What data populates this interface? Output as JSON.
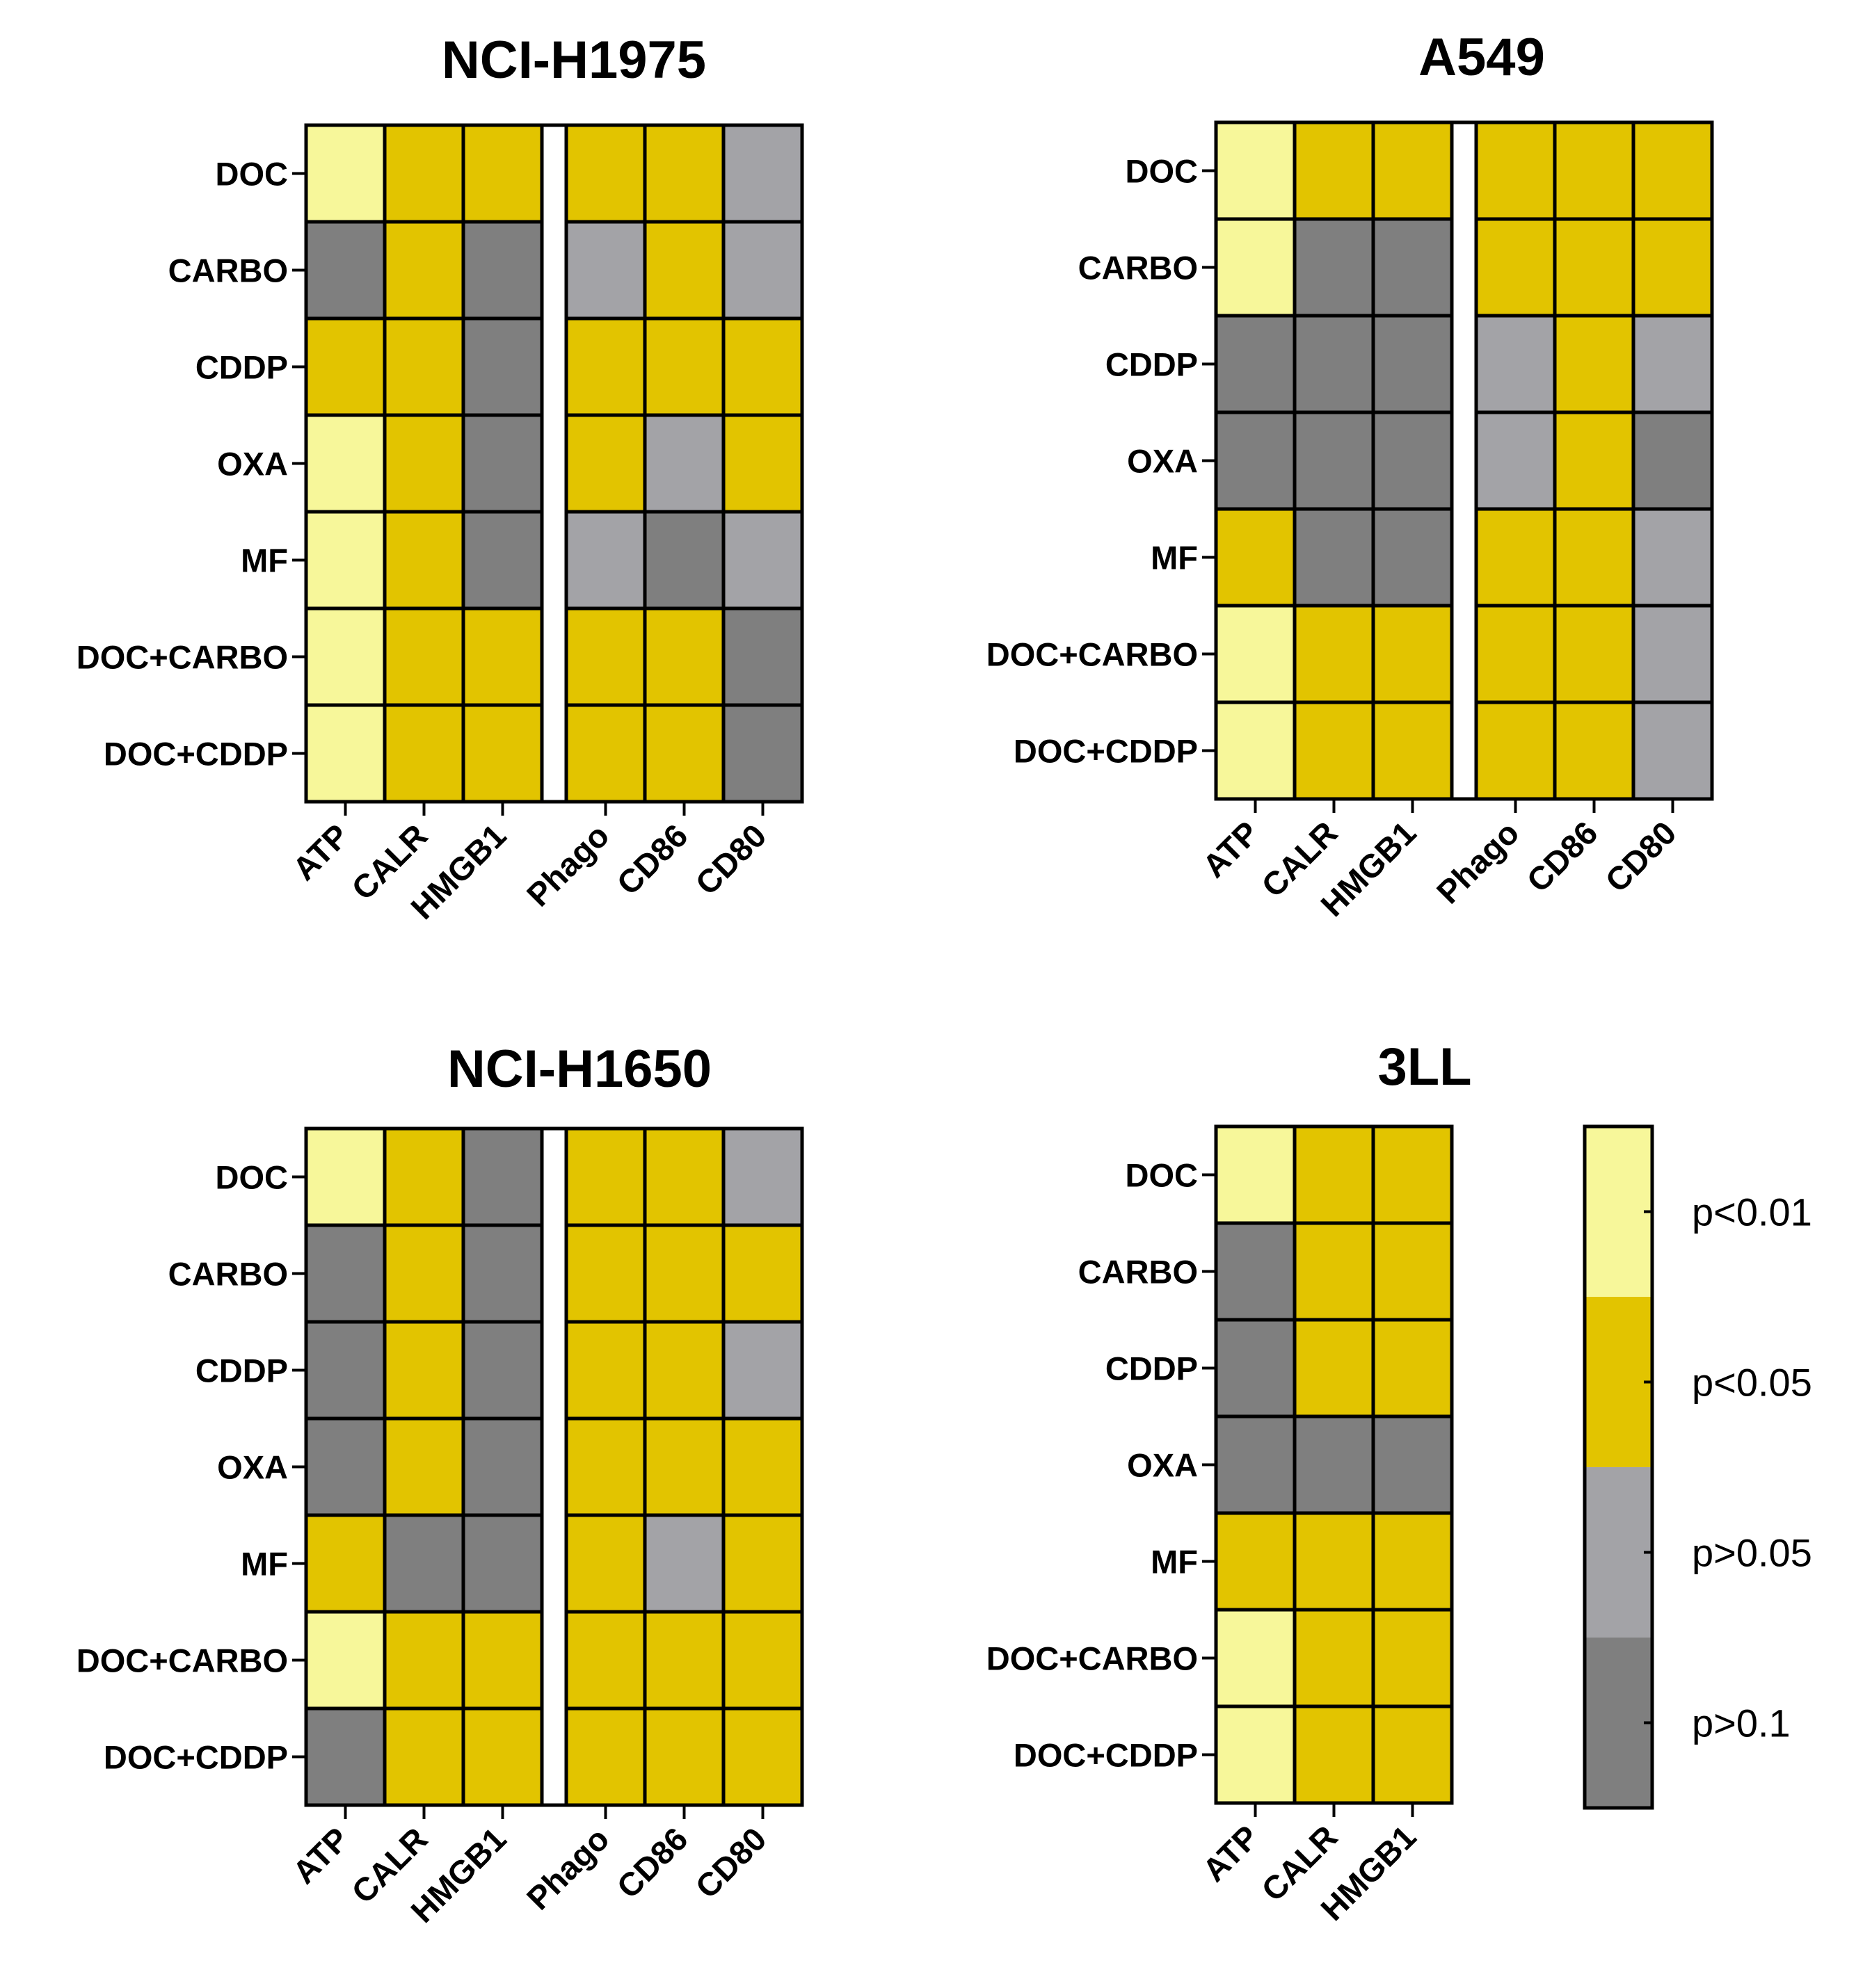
{
  "colors": {
    "p<0.01": "#f7f79a",
    "p<0.05": "#e2c400",
    "p>0.05": "#a3a3a7",
    "p>0.1": "#7f7f7f"
  },
  "chart_data": [
    {
      "type": "heatmap",
      "title": "NCI-H1975",
      "rows": [
        "DOC",
        "CARBO",
        "CDDP",
        "OXA",
        "MF",
        "DOC+CARBO",
        "DOC+CDDP"
      ],
      "columns": [
        "ATP",
        "CALR",
        "HMGB1",
        "Phago",
        "CD86",
        "CD80"
      ],
      "gap_after_column": 2,
      "values": [
        [
          "p<0.01",
          "p<0.05",
          "p<0.05",
          "p<0.05",
          "p<0.05",
          "p>0.05"
        ],
        [
          "p>0.1",
          "p<0.05",
          "p>0.1",
          "p>0.05",
          "p<0.05",
          "p>0.05"
        ],
        [
          "p<0.05",
          "p<0.05",
          "p>0.1",
          "p<0.05",
          "p<0.05",
          "p<0.05"
        ],
        [
          "p<0.01",
          "p<0.05",
          "p>0.1",
          "p<0.05",
          "p>0.05",
          "p<0.05"
        ],
        [
          "p<0.01",
          "p<0.05",
          "p>0.1",
          "p>0.05",
          "p>0.1",
          "p>0.05"
        ],
        [
          "p<0.01",
          "p<0.05",
          "p<0.05",
          "p<0.05",
          "p<0.05",
          "p>0.1"
        ],
        [
          "p<0.01",
          "p<0.05",
          "p<0.05",
          "p<0.05",
          "p<0.05",
          "p>0.1"
        ]
      ]
    },
    {
      "type": "heatmap",
      "title": "A549",
      "rows": [
        "DOC",
        "CARBO",
        "CDDP",
        "OXA",
        "MF",
        "DOC+CARBO",
        "DOC+CDDP"
      ],
      "columns": [
        "ATP",
        "CALR",
        "HMGB1",
        "Phago",
        "CD86",
        "CD80"
      ],
      "gap_after_column": 2,
      "values": [
        [
          "p<0.01",
          "p<0.05",
          "p<0.05",
          "p<0.05",
          "p<0.05",
          "p<0.05"
        ],
        [
          "p<0.01",
          "p>0.1",
          "p>0.1",
          "p<0.05",
          "p<0.05",
          "p<0.05"
        ],
        [
          "p>0.1",
          "p>0.1",
          "p>0.1",
          "p>0.05",
          "p<0.05",
          "p>0.05"
        ],
        [
          "p>0.1",
          "p>0.1",
          "p>0.1",
          "p>0.05",
          "p<0.05",
          "p>0.1"
        ],
        [
          "p<0.05",
          "p>0.1",
          "p>0.1",
          "p<0.05",
          "p<0.05",
          "p>0.05"
        ],
        [
          "p<0.01",
          "p<0.05",
          "p<0.05",
          "p<0.05",
          "p<0.05",
          "p>0.05"
        ],
        [
          "p<0.01",
          "p<0.05",
          "p<0.05",
          "p<0.05",
          "p<0.05",
          "p>0.05"
        ]
      ]
    },
    {
      "type": "heatmap",
      "title": "NCI-H1650",
      "rows": [
        "DOC",
        "CARBO",
        "CDDP",
        "OXA",
        "MF",
        "DOC+CARBO",
        "DOC+CDDP"
      ],
      "columns": [
        "ATP",
        "CALR",
        "HMGB1",
        "Phago",
        "CD86",
        "CD80"
      ],
      "gap_after_column": 2,
      "values": [
        [
          "p<0.01",
          "p<0.05",
          "p>0.1",
          "p<0.05",
          "p<0.05",
          "p>0.05"
        ],
        [
          "p>0.1",
          "p<0.05",
          "p>0.1",
          "p<0.05",
          "p<0.05",
          "p<0.05"
        ],
        [
          "p>0.1",
          "p<0.05",
          "p>0.1",
          "p<0.05",
          "p<0.05",
          "p>0.05"
        ],
        [
          "p>0.1",
          "p<0.05",
          "p>0.1",
          "p<0.05",
          "p<0.05",
          "p<0.05"
        ],
        [
          "p<0.05",
          "p>0.1",
          "p>0.1",
          "p<0.05",
          "p>0.05",
          "p<0.05"
        ],
        [
          "p<0.01",
          "p<0.05",
          "p<0.05",
          "p<0.05",
          "p<0.05",
          "p<0.05"
        ],
        [
          "p>0.1",
          "p<0.05",
          "p<0.05",
          "p<0.05",
          "p<0.05",
          "p<0.05"
        ]
      ]
    },
    {
      "type": "heatmap",
      "title": "3LL",
      "rows": [
        "DOC",
        "CARBO",
        "CDDP",
        "OXA",
        "MF",
        "DOC+CARBO",
        "DOC+CDDP"
      ],
      "columns": [
        "ATP",
        "CALR",
        "HMGB1"
      ],
      "gap_after_column": null,
      "values": [
        [
          "p<0.01",
          "p<0.05",
          "p<0.05"
        ],
        [
          "p>0.1",
          "p<0.05",
          "p<0.05"
        ],
        [
          "p>0.1",
          "p<0.05",
          "p<0.05"
        ],
        [
          "p>0.1",
          "p>0.1",
          "p>0.1"
        ],
        [
          "p<0.05",
          "p<0.05",
          "p<0.05"
        ],
        [
          "p<0.01",
          "p<0.05",
          "p<0.05"
        ],
        [
          "p<0.01",
          "p<0.05",
          "p<0.05"
        ]
      ]
    }
  ],
  "legend": {
    "items": [
      "p<0.01",
      "p<0.05",
      "p>0.05",
      "p>0.1"
    ]
  }
}
